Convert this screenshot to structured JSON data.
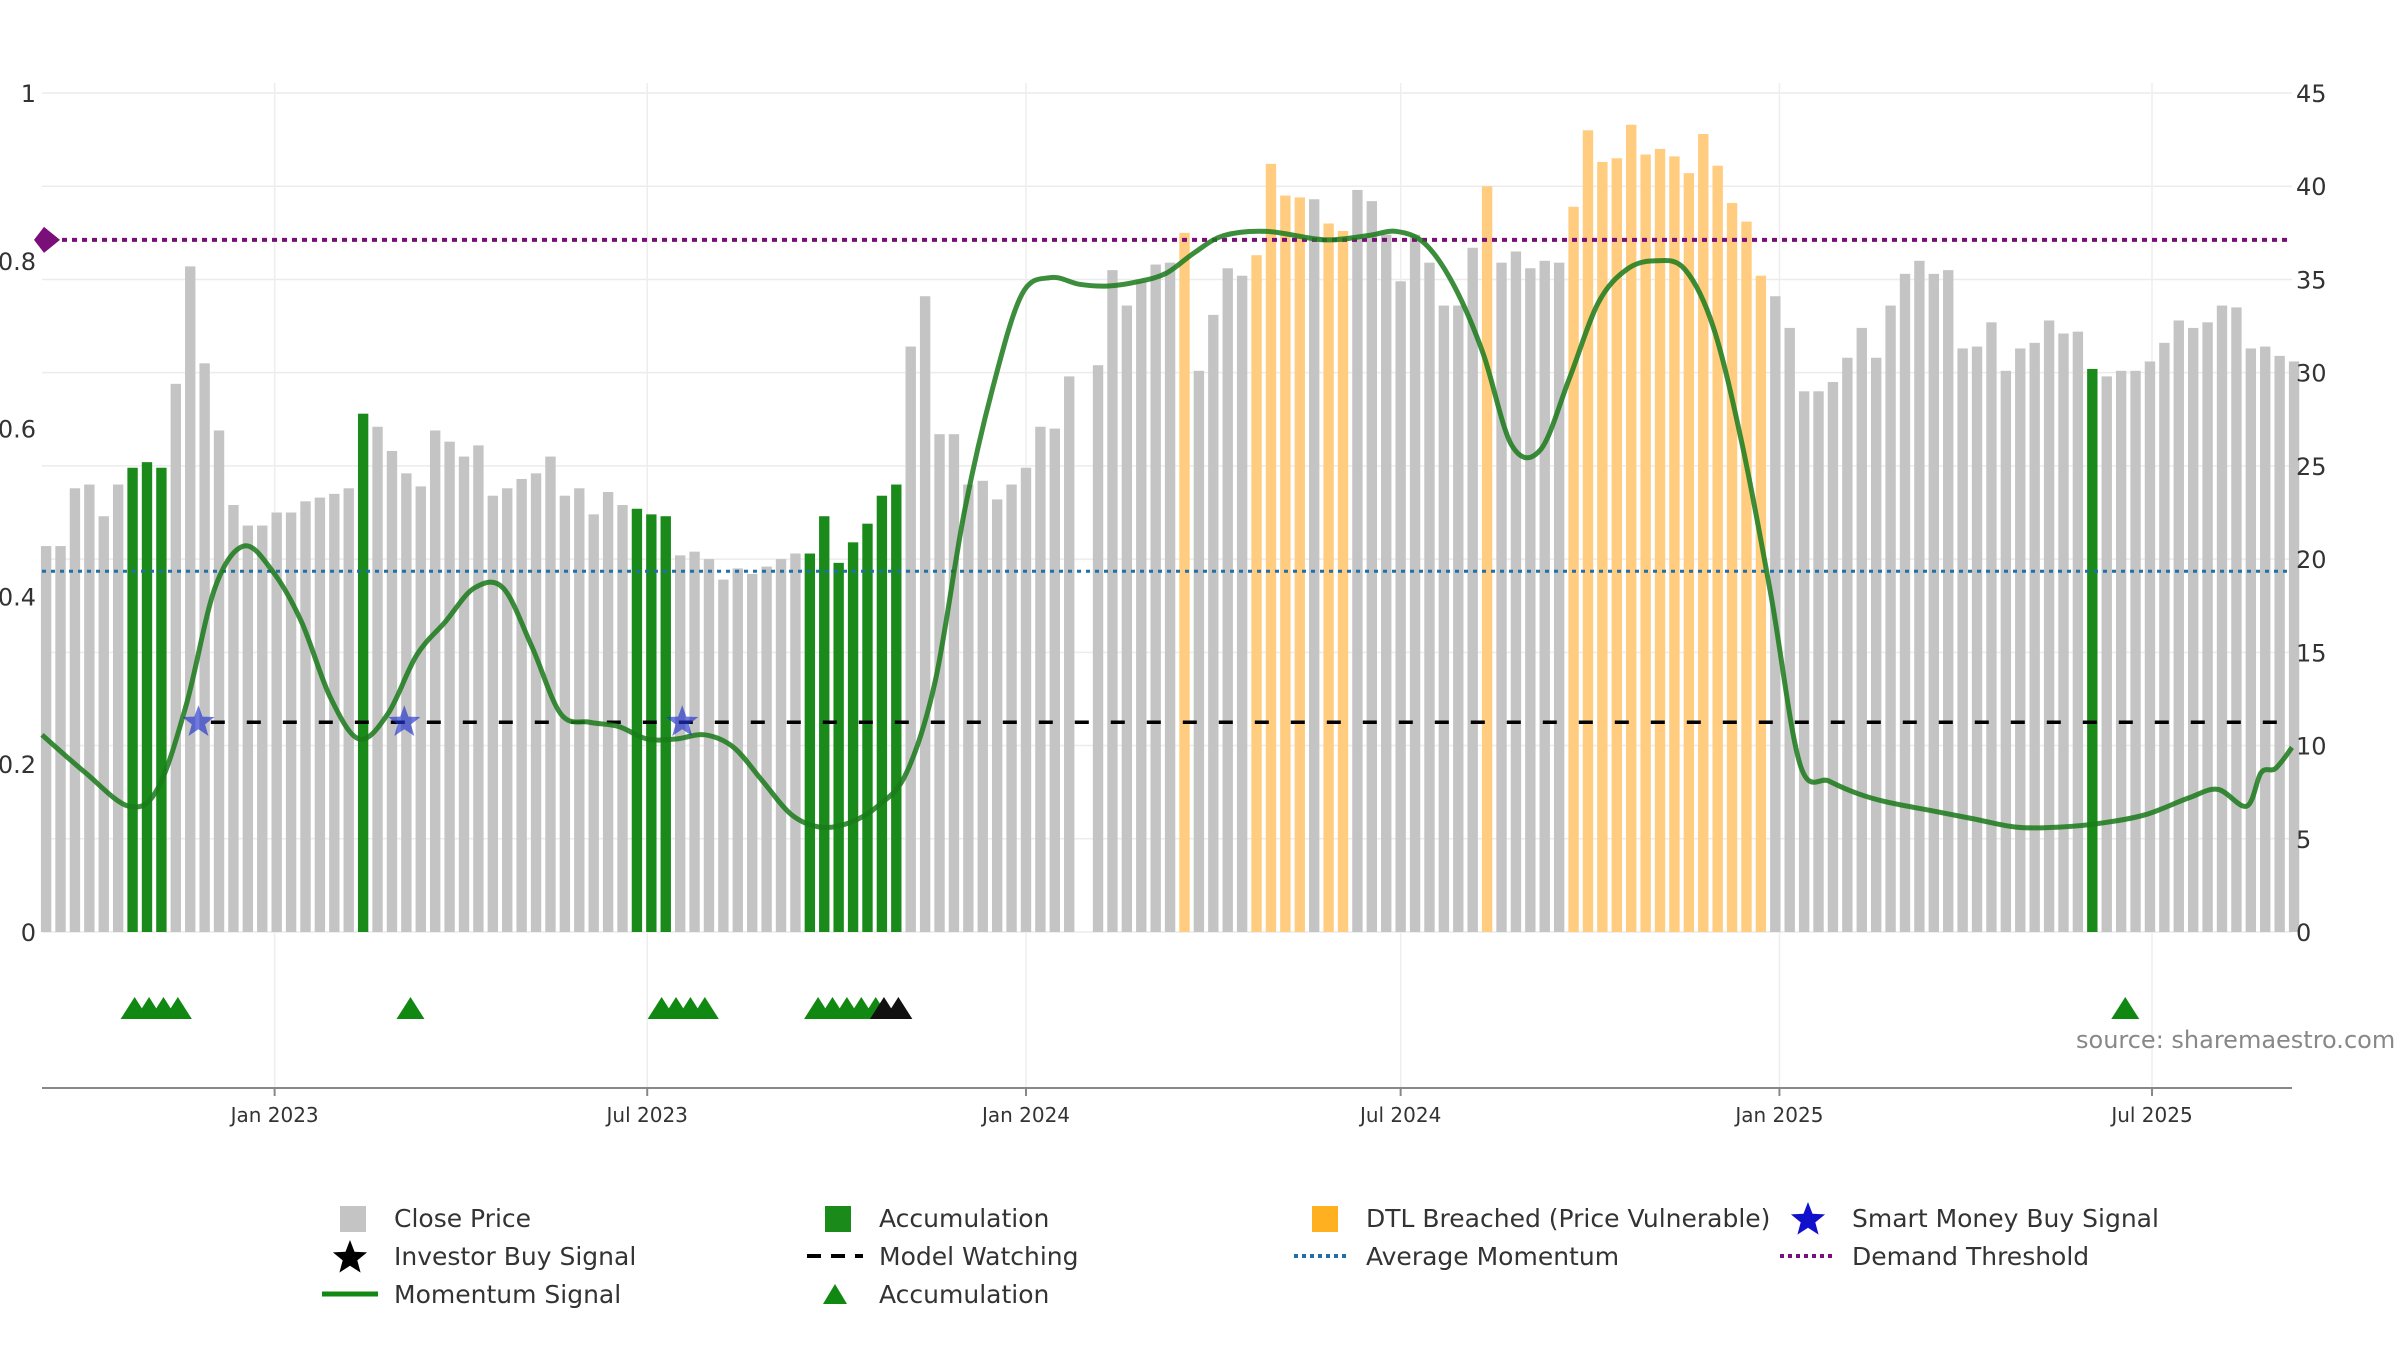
{
  "chart_data": {
    "type": "bar",
    "left_axis": {
      "ylim": [
        0,
        1
      ],
      "ticks": [
        "0",
        "0.2",
        "0.4",
        "0.6",
        "0.8",
        "1"
      ]
    },
    "right_axis": {
      "ylim": [
        0,
        45
      ],
      "ticks": [
        "0",
        "5",
        "10",
        "15",
        "20",
        "25",
        "30",
        "35",
        "40",
        "45"
      ]
    },
    "x_axis": {
      "range": [
        "2022-09-10",
        "2025-09-07"
      ],
      "ticks": [
        {
          "date": "2023-01-01",
          "label": "Jan 2023"
        },
        {
          "date": "2023-07-01",
          "label": "Jul 2023"
        },
        {
          "date": "2024-01-01",
          "label": "Jan 2024"
        },
        {
          "date": "2024-07-01",
          "label": "Jul 2024"
        },
        {
          "date": "2025-01-01",
          "label": "Jan 2025"
        },
        {
          "date": "2025-07-01",
          "label": "Jul 2025"
        }
      ]
    },
    "grid": true,
    "series": [
      {
        "name": "Close Price",
        "type": "bar",
        "axis": "right",
        "start": "2022-09-12",
        "interval": "weekly",
        "values": [
          20.7,
          20.7,
          23.8,
          24,
          22.3,
          24,
          24.9,
          25.2,
          24.9,
          29.4,
          35.7,
          30.5,
          26.9,
          22.9,
          21.8,
          21.8,
          22.5,
          22.5,
          23.1,
          23.3,
          23.5,
          23.8,
          27.8,
          27.1,
          25.8,
          24.6,
          23.9,
          26.9,
          26.3,
          25.5,
          26.1,
          23.4,
          23.8,
          24.3,
          24.6,
          25.5,
          23.4,
          23.8,
          22.4,
          23.6,
          22.9,
          22.7,
          22.4,
          22.3,
          20.2,
          20.4,
          20.0,
          18.9,
          19.5,
          19.2,
          19.6,
          20.0,
          20.3,
          20.3,
          22.3,
          19.8,
          20.9,
          21.9,
          23.4,
          24,
          31.4,
          34.1,
          26.7,
          26.7,
          24,
          24.2,
          23.2,
          24,
          24.9,
          27.1,
          27,
          29.8,
          0,
          30.4,
          35.5,
          33.6,
          34.9,
          35.8,
          35.9,
          37.5,
          30.1,
          33.1,
          35.6,
          35.2,
          36.3,
          41.2,
          39.5,
          39.4,
          39.3,
          38,
          37.6,
          39.8,
          39.2,
          37.4,
          34.9,
          37.4,
          35.9,
          33.6,
          33.6,
          36.7,
          40,
          35.9,
          36.5,
          35.6,
          36.0,
          35.9,
          38.9,
          43,
          41.3,
          41.5,
          43.3,
          41.7,
          42,
          41.6,
          40.7,
          42.8,
          41.1,
          39.1,
          38.1,
          35.2,
          34.1,
          32.4,
          29,
          29,
          29.5,
          30.8,
          32.4,
          30.8,
          33.6,
          35.3,
          36,
          35.3,
          35.5,
          31.3,
          31.4,
          32.7,
          30.1,
          31.3,
          31.6,
          32.8,
          32.1,
          32.2,
          30.2,
          29.8,
          30.1,
          30.1,
          30.6,
          31.6,
          32.8,
          32.4,
          32.7,
          33.6,
          33.5,
          31.3,
          31.4,
          30.9,
          30.6
        ],
        "color": "#c4c4c4"
      },
      {
        "name": "Accumulation",
        "type": "bar-highlight",
        "axis": "right",
        "color": "#1a8a1a",
        "weeks": [
          6,
          7,
          8,
          22,
          41,
          42,
          43,
          53,
          54,
          55,
          56,
          57,
          58,
          59,
          142
        ]
      },
      {
        "name": "DTL Breached (Price Vulnerable)",
        "type": "bar-highlight",
        "axis": "right",
        "color": "#ffcc80",
        "weeks": [
          79,
          84,
          85,
          86,
          87,
          89,
          90,
          100,
          106,
          107,
          108,
          109,
          110,
          111,
          112,
          113,
          114,
          115,
          116,
          117,
          118,
          119
        ]
      },
      {
        "name": "Momentum Signal",
        "type": "line",
        "axis": "left",
        "color": "#1a7a1a",
        "x": [
          "2022-09-10",
          "2022-10-01",
          "2022-10-22",
          "2022-11-05",
          "2022-11-19",
          "2022-12-03",
          "2022-12-17",
          "2022-12-31",
          "2023-01-14",
          "2023-01-28",
          "2023-02-11",
          "2023-02-25",
          "2023-03-11",
          "2023-03-25",
          "2023-04-08",
          "2023-04-22",
          "2023-05-06",
          "2023-05-20",
          "2023-06-03",
          "2023-06-17",
          "2023-07-01",
          "2023-07-15",
          "2023-07-29",
          "2023-08-12",
          "2023-08-26",
          "2023-09-09",
          "2023-09-23",
          "2023-10-07",
          "2023-10-21",
          "2023-11-04",
          "2023-11-18",
          "2023-12-02",
          "2023-12-16",
          "2023-12-30",
          "2024-01-13",
          "2024-01-27",
          "2024-02-10",
          "2024-02-24",
          "2024-03-09",
          "2024-03-23",
          "2024-04-06",
          "2024-04-27",
          "2024-05-25",
          "2024-06-15",
          "2024-06-29",
          "2024-07-13",
          "2024-07-27",
          "2024-08-10",
          "2024-08-24",
          "2024-09-07",
          "2024-09-21",
          "2024-10-05",
          "2024-10-19",
          "2024-11-02",
          "2024-11-16",
          "2024-11-30",
          "2024-12-14",
          "2024-12-28",
          "2025-01-11",
          "2025-01-25",
          "2025-02-08",
          "2025-02-22",
          "2025-03-15",
          "2025-04-05",
          "2025-04-26",
          "2025-05-17",
          "2025-06-07",
          "2025-06-28",
          "2025-07-19",
          "2025-08-02",
          "2025-08-16",
          "2025-08-23",
          "2025-08-30",
          "2025-09-07"
        ],
        "values": [
          0.235,
          0.19,
          0.15,
          0.17,
          0.27,
          0.41,
          0.46,
          0.43,
          0.37,
          0.28,
          0.23,
          0.26,
          0.33,
          0.37,
          0.41,
          0.41,
          0.34,
          0.26,
          0.25,
          0.245,
          0.23,
          0.23,
          0.235,
          0.22,
          0.18,
          0.14,
          0.125,
          0.13,
          0.15,
          0.19,
          0.3,
          0.5,
          0.65,
          0.76,
          0.78,
          0.772,
          0.77,
          0.775,
          0.785,
          0.81,
          0.83,
          0.835,
          0.825,
          0.83,
          0.835,
          0.82,
          0.77,
          0.69,
          0.58,
          0.575,
          0.66,
          0.75,
          0.79,
          0.8,
          0.79,
          0.72,
          0.58,
          0.4,
          0.2,
          0.18,
          0.165,
          0.155,
          0.145,
          0.135,
          0.125,
          0.125,
          0.13,
          0.14,
          0.16,
          0.17,
          0.15,
          0.19,
          0.195,
          0.22
        ]
      },
      {
        "name": "Model Watching",
        "type": "hline",
        "axis": "left",
        "value": 0.25,
        "from": "2022-12-01",
        "color": "#000000"
      },
      {
        "name": "Average Momentum",
        "type": "hline",
        "axis": "left",
        "value": 0.43,
        "color": "#1f6fa8"
      },
      {
        "name": "Demand Threshold",
        "type": "hline",
        "axis": "left",
        "value": 0.825,
        "color": "#7a0f7a"
      },
      {
        "name": "Smart Money Buy Signal",
        "type": "marker-star",
        "axis": "left",
        "color": "#2233cc",
        "x": [
          "2022-11-25",
          "2023-03-05",
          "2023-07-18"
        ],
        "value": 0.25
      },
      {
        "name": "Accumulation",
        "type": "marker-triangle",
        "color": "#118811",
        "x": [
          "2022-10-25",
          "2022-11-01",
          "2022-11-08",
          "2022-11-15",
          "2023-03-08",
          "2023-07-08",
          "2023-07-15",
          "2023-07-22",
          "2023-07-29",
          "2023-09-22",
          "2023-09-29",
          "2023-10-06",
          "2023-10-13",
          "2023-10-20",
          "2025-06-18"
        ]
      },
      {
        "name": "Investor Buy Signal",
        "type": "marker-triangle",
        "color": "#111111",
        "x": [
          "2023-10-24",
          "2023-10-31"
        ]
      }
    ]
  },
  "source": "source: sharemaestro.com",
  "legend": [
    {
      "label": "Close Price",
      "icon": "gray-square"
    },
    {
      "label": "Accumulation",
      "icon": "green-square"
    },
    {
      "label": "DTL Breached (Price Vulnerable)",
      "icon": "orange-square"
    },
    {
      "label": "Smart Money Buy Signal",
      "icon": "blue-star"
    },
    {
      "label": "Investor Buy Signal",
      "icon": "black-star"
    },
    {
      "label": "Model Watching",
      "icon": "black-dashed-line"
    },
    {
      "label": "Average Momentum",
      "icon": "blue-dotted-line"
    },
    {
      "label": "Demand Threshold",
      "icon": "purple-dotted-line"
    },
    {
      "label": "Momentum Signal",
      "icon": "green-line"
    },
    {
      "label": "Accumulation",
      "icon": "green-triangle"
    }
  ]
}
